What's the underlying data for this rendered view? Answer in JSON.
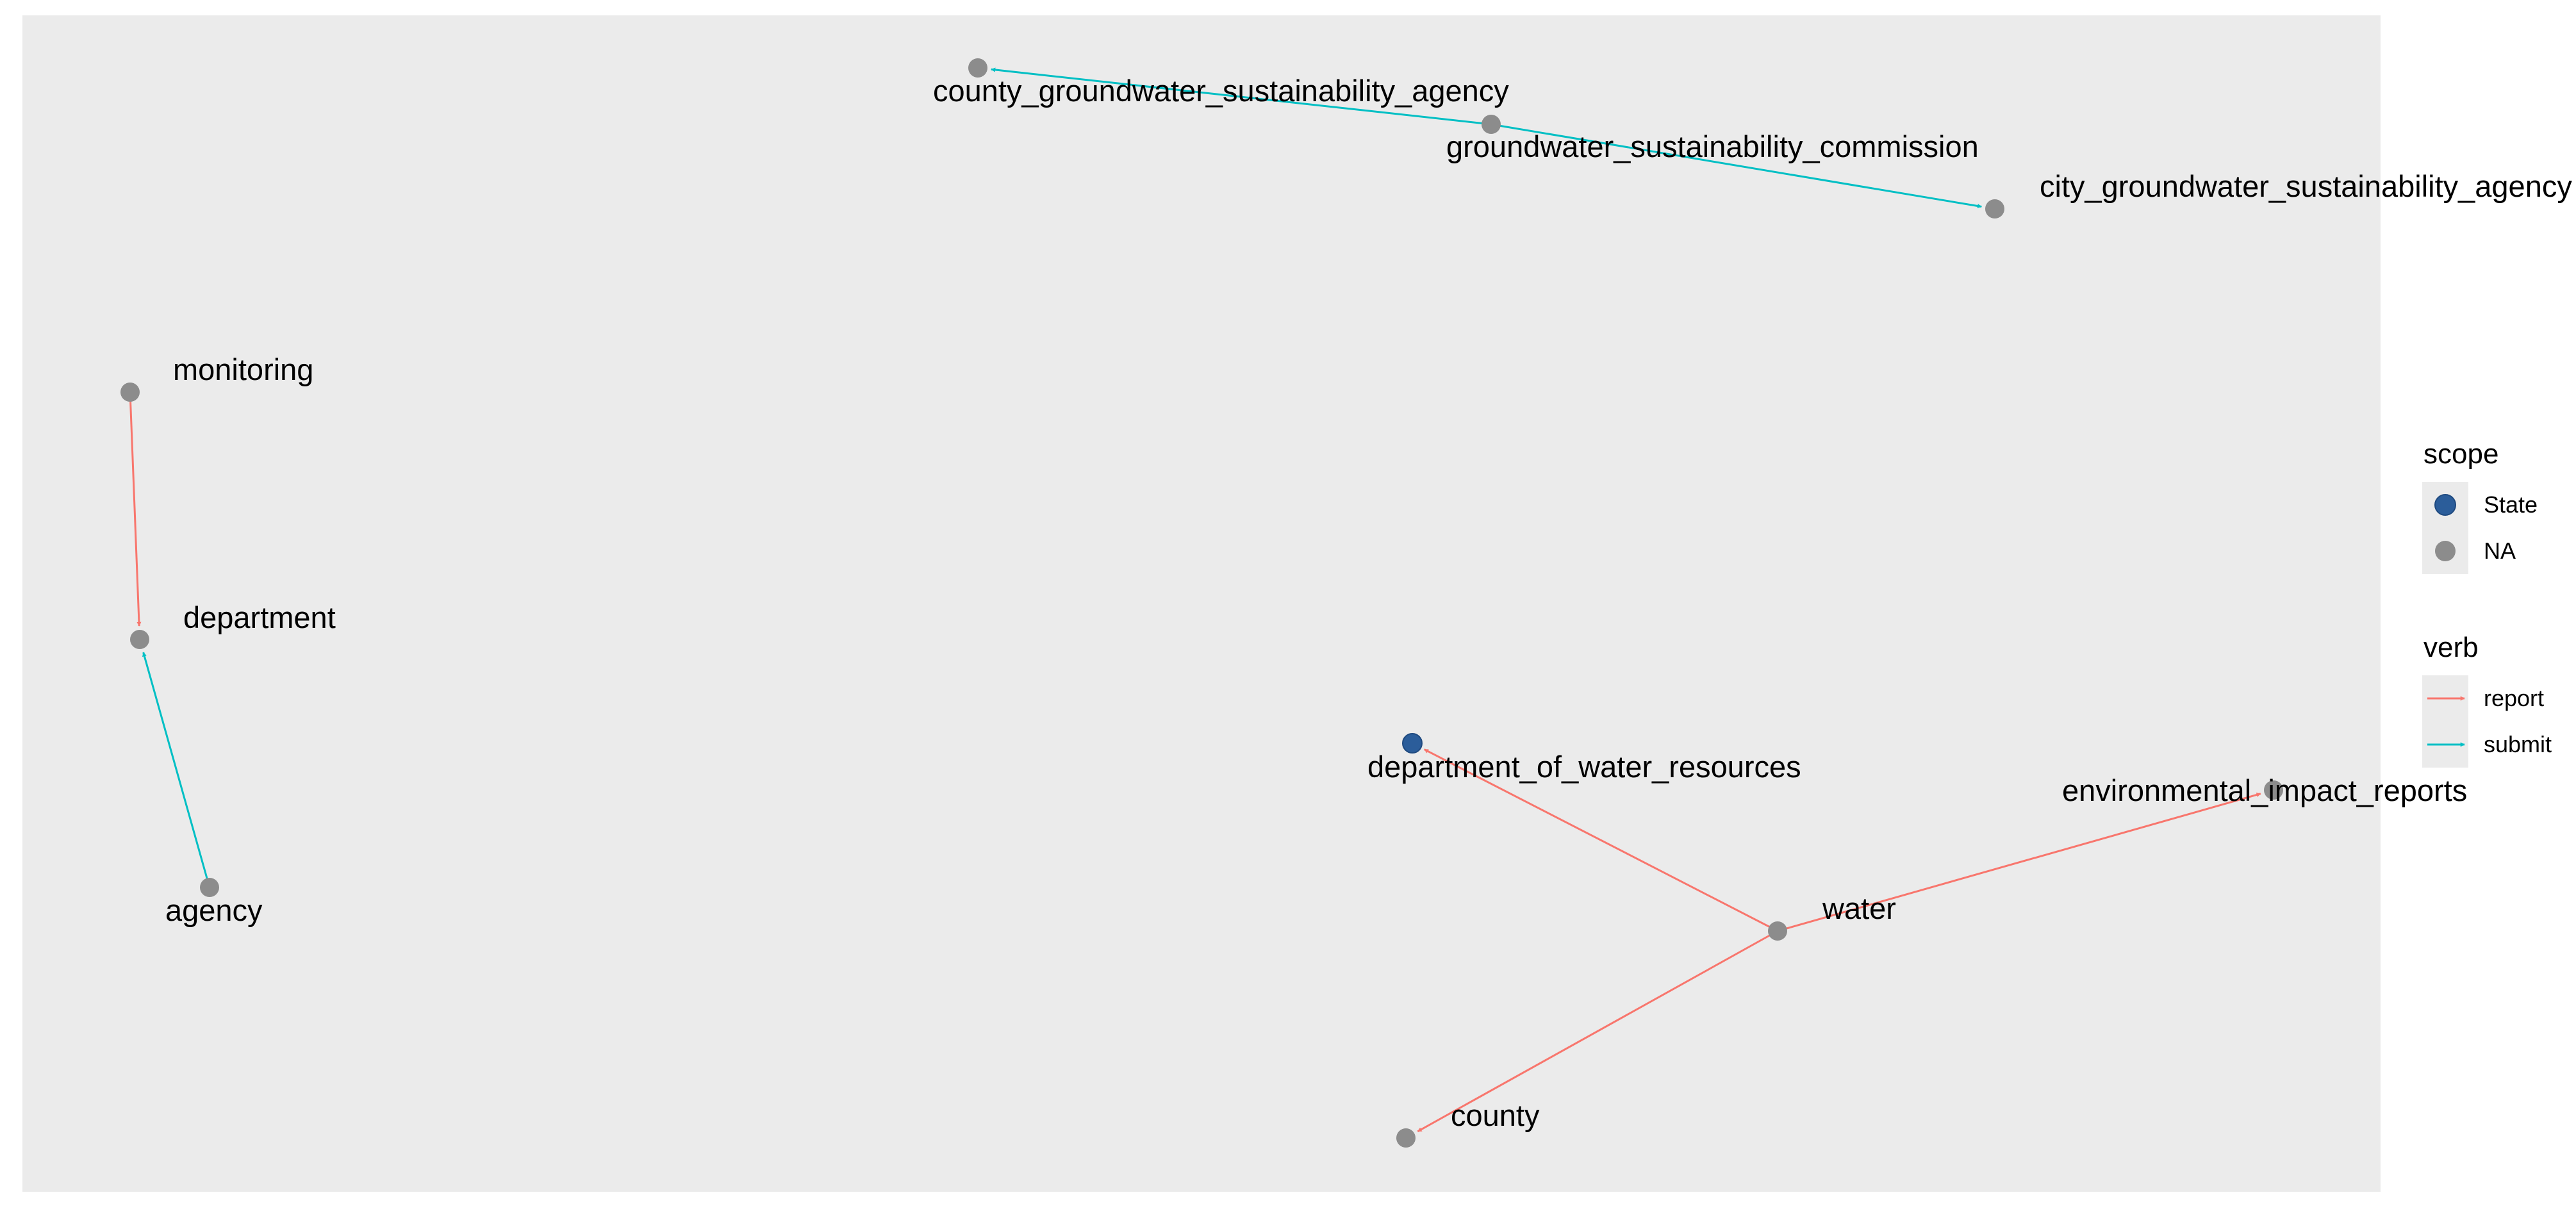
{
  "colors": {
    "panel_bg": "#EBEBEB",
    "node_default": "#8C8C8C",
    "node_state": "#2B5D9A",
    "report": "#F8766D",
    "submit": "#00BFC4",
    "legend_key_bg": "#EBEBEB"
  },
  "nodes": [
    {
      "id": "county_groundwater_sustainability_agency",
      "label": "county_groundwater_sustainability_agency",
      "scope": "NA"
    },
    {
      "id": "groundwater_sustainability_commission",
      "label": "groundwater_sustainability_commission",
      "scope": "NA"
    },
    {
      "id": "city_groundwater_sustainability_agency",
      "label": "city_groundwater_sustainability_agency",
      "scope": "NA"
    },
    {
      "id": "monitoring",
      "label": "monitoring",
      "scope": "NA"
    },
    {
      "id": "department",
      "label": "department",
      "scope": "NA"
    },
    {
      "id": "agency",
      "label": "agency",
      "scope": "NA"
    },
    {
      "id": "department_of_water_resources",
      "label": "department_of_water_resources",
      "scope": "State"
    },
    {
      "id": "environmental_impact_reports",
      "label": "environmental_impact_reports",
      "scope": "NA"
    },
    {
      "id": "water",
      "label": "water",
      "scope": "NA"
    },
    {
      "id": "county",
      "label": "county",
      "scope": "NA"
    }
  ],
  "edges": [
    {
      "from": "groundwater_sustainability_commission",
      "to": "county_groundwater_sustainability_agency",
      "verb": "submit"
    },
    {
      "from": "groundwater_sustainability_commission",
      "to": "city_groundwater_sustainability_agency",
      "verb": "submit"
    },
    {
      "from": "monitoring",
      "to": "department",
      "verb": "report"
    },
    {
      "from": "agency",
      "to": "department",
      "verb": "submit"
    },
    {
      "from": "water",
      "to": "department_of_water_resources",
      "verb": "report"
    },
    {
      "from": "water",
      "to": "environmental_impact_reports",
      "verb": "report"
    },
    {
      "from": "water",
      "to": "county",
      "verb": "report"
    }
  ],
  "legend": {
    "scope": {
      "title": "scope",
      "items": [
        {
          "label": "State",
          "scope": "State"
        },
        {
          "label": "NA",
          "scope": "NA"
        }
      ]
    },
    "verb": {
      "title": "verb",
      "items": [
        {
          "label": "report",
          "verb": "report"
        },
        {
          "label": "submit",
          "verb": "submit"
        }
      ]
    }
  }
}
